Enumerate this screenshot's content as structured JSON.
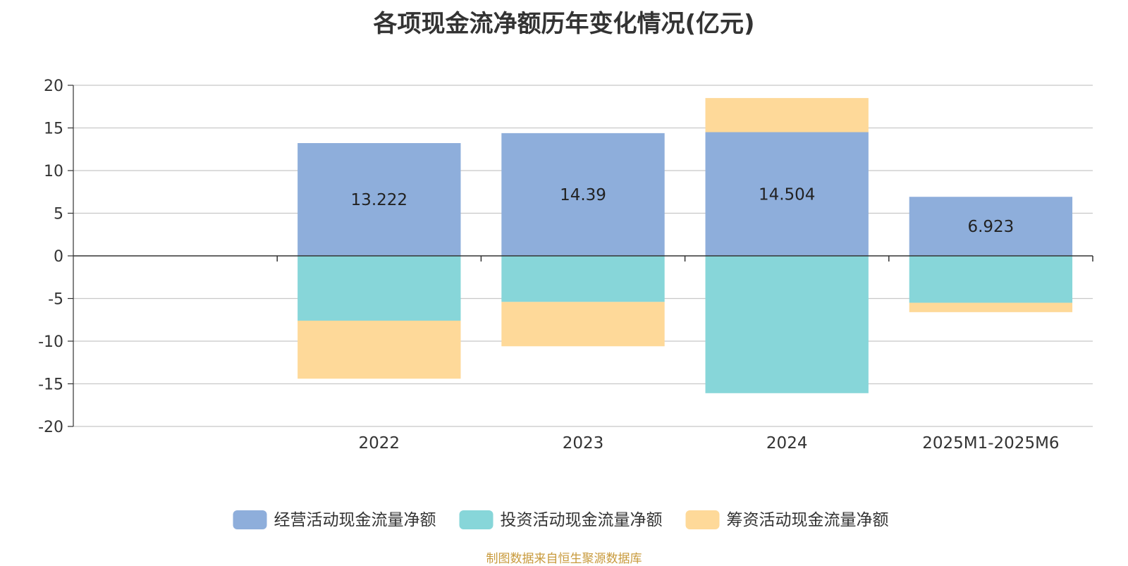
{
  "title": "各项现金流净额历年变化情况(亿元)",
  "source": "制图数据来自恒生聚源数据库",
  "chart_data": {
    "type": "bar",
    "stacked": true,
    "categories": [
      "",
      "2022",
      "2023",
      "2024",
      "2025M1-2025M6"
    ],
    "ylim": [
      -20,
      20
    ],
    "yticks": [
      20,
      15,
      10,
      5,
      0,
      -5,
      -10,
      -15,
      -20
    ],
    "grid": true,
    "legend_position": "bottom",
    "series": [
      {
        "name": "经营活动现金流量净额",
        "color": "#8eaedb",
        "values": [
          null,
          13.222,
          14.39,
          14.504,
          6.923
        ],
        "labels": [
          null,
          "13.222",
          "14.39",
          "14.504",
          "6.923"
        ]
      },
      {
        "name": "投资活动现金流量净额",
        "color": "#87d6d9",
        "values": [
          null,
          -7.6,
          -5.4,
          -16.1,
          -5.5
        ]
      },
      {
        "name": "筹资活动现金流量净额",
        "color": "#fed999",
        "values": [
          null,
          -6.8,
          -5.2,
          4.0,
          -1.1
        ]
      }
    ]
  }
}
